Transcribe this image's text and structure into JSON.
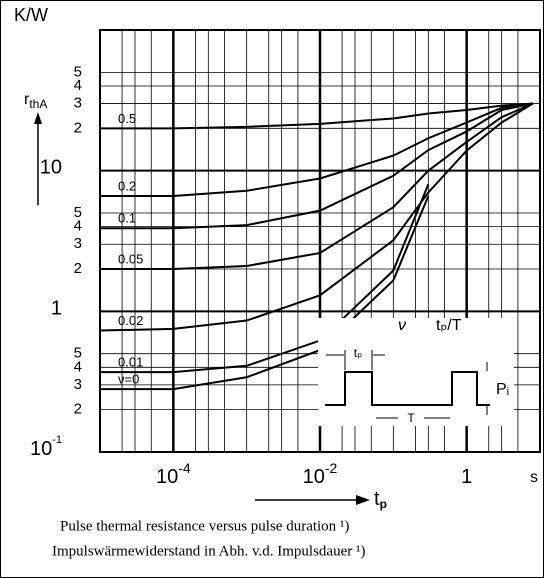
{
  "chart_data": {
    "type": "line",
    "y_unit": "K/W",
    "x_unit": "s",
    "ylabel": {
      "main": "r",
      "sub": "thA"
    },
    "xlabel": {
      "main": "t",
      "sub": "p"
    },
    "log_x": true,
    "log_y": true,
    "grid": true,
    "minor_grid": [
      2,
      3,
      5
    ],
    "color": "#000000",
    "xlim": [
      1e-05,
      10
    ],
    "ylim": [
      0.1,
      100
    ],
    "xticks": [
      {
        "value": 0.0001,
        "label": "10",
        "exponent": "-4"
      },
      {
        "value": 0.01,
        "label": "10",
        "exponent": "-2"
      },
      1
    ],
    "yticks": [
      {
        "value": 0.1,
        "label": "10",
        "exponent": "-1"
      },
      {
        "value": 0.2,
        "label": "2"
      },
      {
        "value": 0.3,
        "label": "3"
      },
      {
        "value": 0.4,
        "label": "4"
      },
      {
        "value": 0.5,
        "label": "5"
      },
      1,
      {
        "value": 2,
        "label": "2"
      },
      {
        "value": 3,
        "label": "3"
      },
      {
        "value": 4,
        "label": "4"
      },
      {
        "value": 5,
        "label": "5"
      },
      10,
      {
        "value": 20,
        "label": "2"
      },
      {
        "value": 30,
        "label": "3"
      },
      {
        "value": 40,
        "label": "4"
      },
      {
        "value": 50,
        "label": "5"
      }
    ],
    "x": [
      1e-05,
      0.0001,
      0.001,
      0.01,
      0.1,
      0.3,
      1,
      3,
      8
    ],
    "series": [
      {
        "name": "0.5",
        "values": [
          20,
          20,
          20.5,
          21.5,
          23.5,
          25.5,
          27,
          29,
          30
        ]
      },
      {
        "name": "0.2",
        "values": [
          6.6,
          6.6,
          7.2,
          8.8,
          12.8,
          17,
          22,
          28,
          30
        ]
      },
      {
        "name": "0.1",
        "values": [
          3.9,
          3.9,
          4.1,
          5.2,
          9.2,
          14,
          19,
          27,
          30
        ]
      },
      {
        "name": "0.05",
        "values": [
          2.0,
          2.0,
          2.1,
          2.6,
          5.5,
          10,
          16,
          24,
          30
        ]
      },
      {
        "name": "0.02",
        "values": [
          0.73,
          0.75,
          0.86,
          1.3,
          3.2,
          7,
          13.9,
          22,
          30
        ]
      },
      {
        "name": "0.01",
        "values": [
          0.37,
          0.37,
          0.41,
          0.62,
          1.95,
          8,
          null,
          null,
          null
        ]
      },
      {
        "name": "ν=0",
        "values": [
          0.28,
          0.28,
          0.34,
          0.53,
          1.66,
          6.6,
          null,
          null,
          null
        ]
      }
    ],
    "inset": {
      "nu": "ν",
      "ratio": "tₚ/T",
      "pulse_width": "tₚ",
      "period": "T",
      "power": "Pᵢ"
    },
    "caption": [
      "Pulse thermal resistance versus pulse duration ¹)",
      "Impulswärmewiderstand in Abh. v.d. Impulsdauer ¹)"
    ]
  }
}
